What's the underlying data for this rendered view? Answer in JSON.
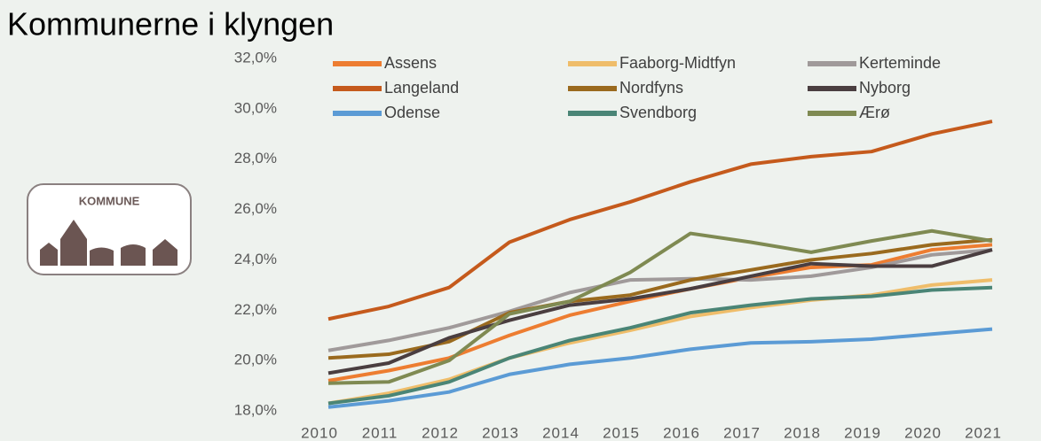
{
  "chart_data": {
    "type": "line",
    "title": "Kommunerne i klyngen",
    "icon_label": "KOMMUNE",
    "categories": [
      "2010",
      "2011",
      "2012",
      "2013",
      "2014",
      "2015",
      "2016",
      "2017",
      "2018",
      "2019",
      "2020",
      "2021"
    ],
    "series": [
      {
        "name": "Assens",
        "color": "#ed7d31",
        "values": [
          19.2,
          19.6,
          20.1,
          21.0,
          21.8,
          22.35,
          22.85,
          23.3,
          23.7,
          23.8,
          24.4,
          24.6
        ]
      },
      {
        "name": "Faaborg-Midtfyn",
        "color": "#efbd6a",
        "values": [
          18.3,
          18.7,
          19.25,
          20.1,
          20.7,
          21.2,
          21.75,
          22.1,
          22.4,
          22.6,
          23.0,
          23.2
        ]
      },
      {
        "name": "Kerteminde",
        "color": "#a09a9a",
        "values": [
          20.4,
          20.8,
          21.3,
          21.95,
          22.7,
          23.2,
          23.25,
          23.2,
          23.35,
          23.7,
          24.2,
          24.4
        ]
      },
      {
        "name": "Langeland",
        "color": "#c55a1c",
        "values": [
          21.65,
          22.15,
          22.9,
          24.7,
          25.6,
          26.3,
          27.1,
          27.8,
          28.1,
          28.3,
          29.0,
          29.5
        ]
      },
      {
        "name": "Nordfyns",
        "color": "#9a6a1e",
        "values": [
          20.1,
          20.25,
          20.75,
          21.9,
          22.35,
          22.6,
          23.2,
          23.6,
          24.0,
          24.25,
          24.6,
          24.8
        ]
      },
      {
        "name": "Nyborg",
        "color": "#4a3e40",
        "values": [
          19.5,
          19.9,
          20.9,
          21.6,
          22.2,
          22.45,
          22.85,
          23.35,
          23.85,
          23.75,
          23.75,
          24.4
        ]
      },
      {
        "name": "Odense",
        "color": "#5b9bd5",
        "values": [
          18.15,
          18.4,
          18.75,
          19.45,
          19.85,
          20.1,
          20.45,
          20.7,
          20.75,
          20.85,
          21.05,
          21.25
        ]
      },
      {
        "name": "Svendborg",
        "color": "#4a8576",
        "values": [
          18.3,
          18.6,
          19.15,
          20.1,
          20.8,
          21.3,
          21.9,
          22.2,
          22.45,
          22.55,
          22.8,
          22.9
        ]
      },
      {
        "name": "Ærø",
        "color": "#7f8a52",
        "values": [
          19.1,
          19.15,
          20.0,
          21.85,
          22.35,
          23.5,
          25.05,
          24.7,
          24.3,
          24.75,
          25.15,
          24.75
        ]
      }
    ],
    "ylim": [
      18,
      32
    ],
    "yticks": [
      {
        "value": 18,
        "label": "18,0%"
      },
      {
        "value": 20,
        "label": "20,0%"
      },
      {
        "value": 22,
        "label": "22,0%"
      },
      {
        "value": 24,
        "label": "24,0%"
      },
      {
        "value": 26,
        "label": "26,0%"
      },
      {
        "value": 28,
        "label": "28,0%"
      },
      {
        "value": 30,
        "label": "30,0%"
      },
      {
        "value": 32,
        "label": "32,0%"
      }
    ],
    "grid": false,
    "legend": "top"
  }
}
